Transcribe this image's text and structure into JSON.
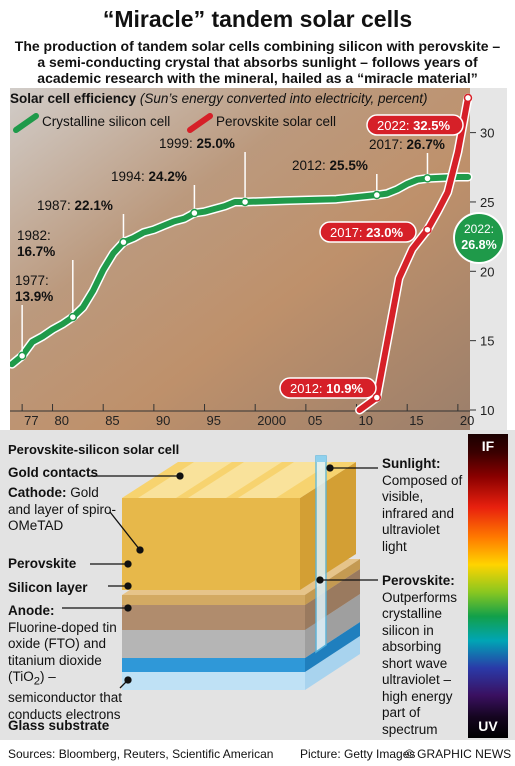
{
  "header": {
    "title": "“Miracle” tandem solar cells",
    "subtitle": "The production of tandem solar cells combining silicon with perovskite – a semi-conducting crystal that absorbs sunlight – follows years of academic research with the mineral, hailed as a “miracle material”"
  },
  "chart_data": {
    "type": "line",
    "title": "Solar cell efficiency",
    "subtitle": "(Sun’s energy converted into electricity, percent)",
    "xlim": [
      1976,
      2021
    ],
    "ylim": [
      10,
      33
    ],
    "x_ticks": [
      "77",
      "80",
      "85",
      "90",
      "95",
      "2000",
      "05",
      "10",
      "15",
      "20"
    ],
    "x_tick_values": [
      1977,
      1980,
      1985,
      1990,
      1995,
      2000,
      2005,
      2010,
      2015,
      2020
    ],
    "y_ticks": [
      10,
      15,
      20,
      25,
      30
    ],
    "legend_position": "top-left",
    "series": [
      {
        "name": "Crystalline silicon cell",
        "color": "#1f9a4a",
        "points": [
          [
            1976,
            13.3
          ],
          [
            1977,
            13.9
          ],
          [
            1978,
            14.9
          ],
          [
            1979,
            15.3
          ],
          [
            1980,
            15.8
          ],
          [
            1981,
            16.2
          ],
          [
            1982,
            16.7
          ],
          [
            1983,
            17.4
          ],
          [
            1984,
            18.6
          ],
          [
            1985,
            20.1
          ],
          [
            1986,
            21.3
          ],
          [
            1987,
            22.1
          ],
          [
            1988,
            22.4
          ],
          [
            1989,
            22.8
          ],
          [
            1990,
            23.0
          ],
          [
            1991,
            23.3
          ],
          [
            1992,
            23.6
          ],
          [
            1993,
            23.8
          ],
          [
            1994,
            24.2
          ],
          [
            1995,
            24.3
          ],
          [
            1996,
            24.5
          ],
          [
            1997,
            24.7
          ],
          [
            1998,
            25.0
          ],
          [
            1999,
            25.0
          ],
          [
            2003,
            25.1
          ],
          [
            2008,
            25.2
          ],
          [
            2012,
            25.5
          ],
          [
            2013,
            25.6
          ],
          [
            2014,
            25.9
          ],
          [
            2015,
            26.3
          ],
          [
            2016,
            26.6
          ],
          [
            2017,
            26.7
          ],
          [
            2020,
            26.8
          ],
          [
            2021,
            26.8
          ]
        ],
        "labels": [
          {
            "year": "1977:",
            "value": "13.9%"
          },
          {
            "year": "1982:",
            "value": "16.7%"
          },
          {
            "year": "1987:",
            "value": "22.1%"
          },
          {
            "year": "1994:",
            "value": "24.2%"
          },
          {
            "year": "1999:",
            "value": "25.0%"
          },
          {
            "year": "2012:",
            "value": "25.5%"
          },
          {
            "year": "2017:",
            "value": "26.7%"
          },
          {
            "year": "2022:",
            "value": "26.8%"
          }
        ]
      },
      {
        "name": "Perovskite solar cell",
        "color": "#d62028",
        "points": [
          [
            2010.3,
            10.0
          ],
          [
            2012,
            10.9
          ],
          [
            2013.2,
            15.6
          ],
          [
            2014.2,
            19.5
          ],
          [
            2015.5,
            21.6
          ],
          [
            2017,
            23.0
          ],
          [
            2018,
            24.3
          ],
          [
            2019,
            25.7
          ],
          [
            2020,
            28.6
          ],
          [
            2021,
            32.5
          ]
        ],
        "labels": [
          {
            "year": "2012:",
            "value": "10.9%"
          },
          {
            "year": "2017:",
            "value": "23.0%"
          },
          {
            "year": "2022:",
            "value": "32.5%"
          }
        ]
      }
    ]
  },
  "diagram": {
    "title": "Perovskite-silicon solar cell",
    "gold_contacts": "Gold contacts",
    "cathode_head": "Cathode:",
    "cathode_text": "Gold and layer of spiro-OMeTAD",
    "perovskite": "Perovskite",
    "silicon_layer": "Silicon layer",
    "anode_head": "Anode:",
    "anode_text_a": "Fluorine-doped tin oxide (FTO) and titanium dioxide (TiO",
    "anode_sub": "2",
    "anode_text_b": ") – semiconductor that conducts electrons",
    "glass_substrate": "Glass substrate",
    "sunlight_head": "Sunlight:",
    "sunlight_text": "Composed of visible, infrared and ultraviolet light",
    "perovskite_head": "Perovskite:",
    "perovskite_text": "Outperforms crystalline silicon in absorbing short wave ultraviolet – high energy part of spectrum",
    "spectrum_top": "IF",
    "spectrum_bottom": "UV"
  },
  "footer": {
    "sources": "Sources: Bloomberg, Reuters, Scientific American",
    "picture": "Picture: Getty Images",
    "credit": "© GRAPHIC NEWS"
  }
}
